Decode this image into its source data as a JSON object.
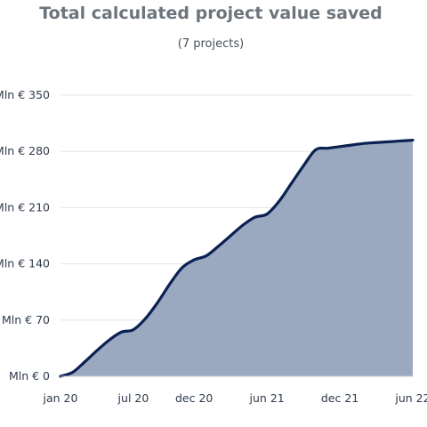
{
  "chart_data": {
    "type": "area",
    "title": "Total calculated project value saved",
    "subtitle": "(7 projects)",
    "xlabel": "",
    "ylabel": "",
    "x": [
      "2020-01",
      "2020-02",
      "2020-03",
      "2020-04",
      "2020-05",
      "2020-06",
      "2020-07",
      "2020-08",
      "2020-09",
      "2020-10",
      "2020-11",
      "2020-12",
      "2021-01",
      "2021-02",
      "2021-03",
      "2021-04",
      "2021-05",
      "2021-06",
      "2021-07",
      "2021-08",
      "2021-09",
      "2021-10",
      "2021-11",
      "2021-12",
      "2022-01",
      "2022-02",
      "2022-03",
      "2022-04",
      "2022-05",
      "2022-06"
    ],
    "series": [
      {
        "values": [
          0,
          5,
          18,
          32,
          45,
          55,
          58,
          72,
          92,
          115,
          135,
          145,
          150,
          162,
          175,
          188,
          198,
          202,
          218,
          240,
          262,
          282,
          284,
          286,
          288,
          290,
          291,
          292,
          293,
          294
        ]
      }
    ],
    "x_ticks": [
      "jan 20",
      "jul 20",
      "dec 20",
      "jun 21",
      "dec 21",
      "jun 22"
    ],
    "y_ticks": [
      "Mln € 0",
      "Mln € 70",
      "Mln € 140",
      "Mln € 210",
      "Mln € 280",
      "Mln € 350"
    ],
    "ylim": [
      0,
      350
    ],
    "grid": true,
    "colors": {
      "line": "#0b2152",
      "fill": "#9aa8c0",
      "grid": "#e3e5e8",
      "axis": "#2f3a4d"
    }
  }
}
